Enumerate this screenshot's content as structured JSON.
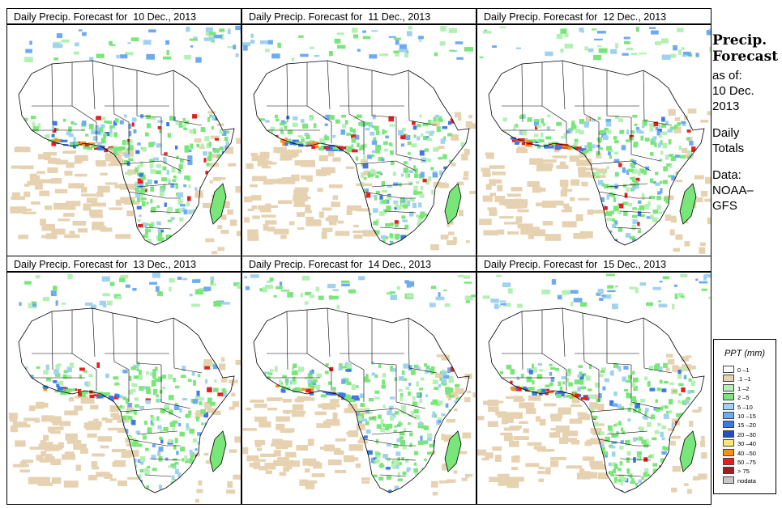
{
  "panels": [
    {
      "title": "Daily Precip. Forecast for  10 Dec., 2013",
      "seed": 11
    },
    {
      "title": "Daily Precip. Forecast for  11 Dec., 2013",
      "seed": 23
    },
    {
      "title": "Daily Precip. Forecast for  12 Dec., 2013",
      "seed": 37
    },
    {
      "title": "Daily Precip. Forecast for  13 Dec., 2013",
      "seed": 41
    },
    {
      "title": "Daily Precip. Forecast for  14 Dec., 2013",
      "seed": 59
    },
    {
      "title": "Daily Precip. Forecast for  15 Dec., 2013",
      "seed": 67
    }
  ],
  "sidebar": {
    "heading1": "Precip.",
    "heading2": "Forecast",
    "as_of_label": "as of:",
    "date_line1": "10 Dec.",
    "date_line2": "2013",
    "totals_line1": "Daily",
    "totals_line2": "Totals",
    "data_label": "Data:",
    "data_source1": "NOAA–",
    "data_source2": "GFS"
  },
  "legend": {
    "title": "PPT (mm)",
    "items": [
      {
        "label": "0 –1",
        "color": "#ffffff"
      },
      {
        "label": ".1 –1",
        "color": "#e6d2b0"
      },
      {
        "label": "1 –2",
        "color": "#b4f0b4"
      },
      {
        "label": "2 –5",
        "color": "#78e678"
      },
      {
        "label": "5 –10",
        "color": "#a0d2f0"
      },
      {
        "label": "10 –15",
        "color": "#6eaaf0"
      },
      {
        "label": "15 –20",
        "color": "#3c78e6"
      },
      {
        "label": "20 –30",
        "color": "#1e50c8"
      },
      {
        "label": "30 –40",
        "color": "#ffe678"
      },
      {
        "label": "40 –50",
        "color": "#ff8c1e"
      },
      {
        "label": "50 –75",
        "color": "#e61e1e"
      },
      {
        "label": "> 75",
        "color": "#a01e1e"
      },
      {
        "label": "nodata",
        "color": "#c8c8c8"
      }
    ]
  }
}
